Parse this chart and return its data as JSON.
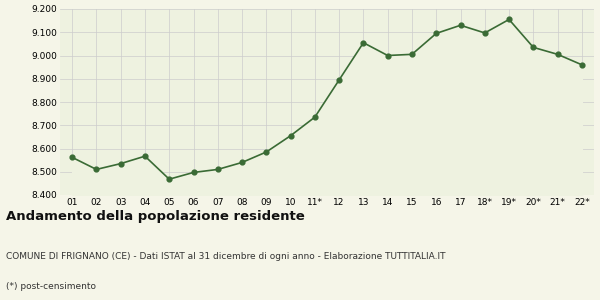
{
  "labels": [
    "01",
    "02",
    "03",
    "04",
    "05",
    "06",
    "07",
    "08",
    "09",
    "10",
    "11*",
    "12",
    "13",
    "14",
    "15",
    "16",
    "17",
    "18*",
    "19*",
    "20*",
    "21*",
    "22*"
  ],
  "values": [
    8562,
    8510,
    8535,
    8567,
    8468,
    8497,
    8510,
    8540,
    8585,
    8655,
    8735,
    8895,
    9055,
    9000,
    9005,
    9095,
    9130,
    9097,
    9155,
    9035,
    9005,
    8960
  ],
  "line_color": "#3a6b35",
  "fill_color": "#eef2e0",
  "marker_color": "#3a6b35",
  "bg_color": "#f5f5e8",
  "grid_color": "#cccccc",
  "ylim": [
    8400,
    9200
  ],
  "yticks": [
    8400,
    8500,
    8600,
    8700,
    8800,
    8900,
    9000,
    9100,
    9200
  ],
  "title": "Andamento della popolazione residente",
  "subtitle": "COMUNE DI FRIGNANO (CE) - Dati ISTAT al 31 dicembre di ogni anno - Elaborazione TUTTITALIA.IT",
  "footnote": "(*) post-censimento",
  "title_fontsize": 9.5,
  "subtitle_fontsize": 6.5,
  "footnote_fontsize": 6.5,
  "tick_fontsize": 6.5
}
